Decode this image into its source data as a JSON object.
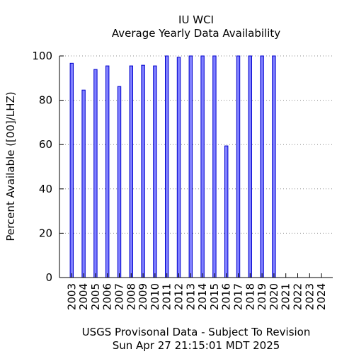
{
  "chart_data": {
    "type": "bar",
    "title": "IU WCI",
    "subtitle": "Average Yearly Data Availability",
    "ylabel": "Percent Available ([00]/LHZ)",
    "xlabel": "",
    "ylim": [
      0,
      100
    ],
    "yticks": [
      0,
      20,
      40,
      60,
      80,
      100
    ],
    "grid": "horizontal dotted",
    "legend": "none",
    "categories": [
      "2003",
      "2004",
      "2005",
      "2006",
      "2007",
      "2008",
      "2009",
      "2010",
      "2011",
      "2012",
      "2013",
      "2014",
      "2015",
      "2016",
      "2017",
      "2018",
      "2019",
      "2020",
      "2021",
      "2022",
      "2023",
      "2024"
    ],
    "values": [
      96.7,
      84.6,
      93.9,
      95.5,
      86.2,
      95.5,
      95.8,
      95.5,
      100,
      99.4,
      100,
      100,
      100,
      59.4,
      100,
      100,
      100,
      100,
      0,
      0,
      0,
      0
    ],
    "bar_fill": "#8080ff",
    "bar_stroke": "#0000cc"
  },
  "footer": {
    "line1": "USGS Provisonal Data - Subject To Revision",
    "line2": "Sun Apr 27 21:15:01 MDT 2025"
  }
}
